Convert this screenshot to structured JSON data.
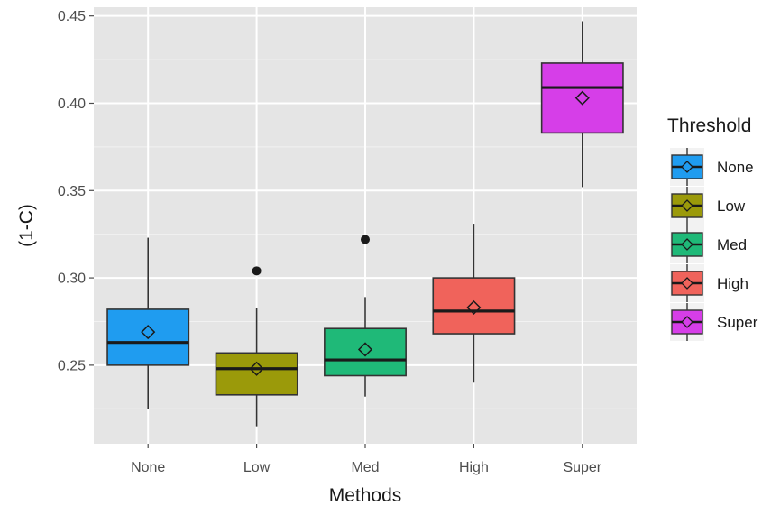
{
  "chart_data": {
    "type": "box",
    "xlabel": "Methods",
    "ylabel": "(1-C)",
    "ylim": [
      0.205,
      0.455
    ],
    "yticks": [
      0.25,
      0.3,
      0.35,
      0.4,
      0.45
    ],
    "ytick_labels": [
      "0.25",
      "0.30",
      "0.35",
      "0.40",
      "0.45"
    ],
    "categories": [
      "None",
      "Low",
      "Med",
      "High",
      "Super"
    ],
    "grid": true,
    "legend": {
      "title": "Threshold",
      "position": "right"
    },
    "series": [
      {
        "name": "None",
        "color": "#1f9cf0",
        "whisker_low": 0.225,
        "q1": 0.25,
        "median": 0.263,
        "q3": 0.282,
        "whisker_high": 0.323,
        "mean": 0.269,
        "outliers": []
      },
      {
        "name": "Low",
        "color": "#9b9a0a",
        "whisker_low": 0.215,
        "q1": 0.233,
        "median": 0.248,
        "q3": 0.257,
        "whisker_high": 0.283,
        "mean": 0.248,
        "outliers": [
          0.304
        ]
      },
      {
        "name": "Med",
        "color": "#1fb978",
        "whisker_low": 0.232,
        "q1": 0.244,
        "median": 0.253,
        "q3": 0.271,
        "whisker_high": 0.289,
        "mean": 0.259,
        "outliers": [
          0.322
        ]
      },
      {
        "name": "High",
        "color": "#f0635b",
        "whisker_low": 0.24,
        "q1": 0.268,
        "median": 0.281,
        "q3": 0.3,
        "whisker_high": 0.331,
        "mean": 0.283,
        "outliers": []
      },
      {
        "name": "Super",
        "color": "#d63ee8",
        "whisker_low": 0.352,
        "q1": 0.383,
        "median": 0.409,
        "q3": 0.423,
        "whisker_high": 0.447,
        "mean": 0.403,
        "outliers": []
      }
    ]
  }
}
